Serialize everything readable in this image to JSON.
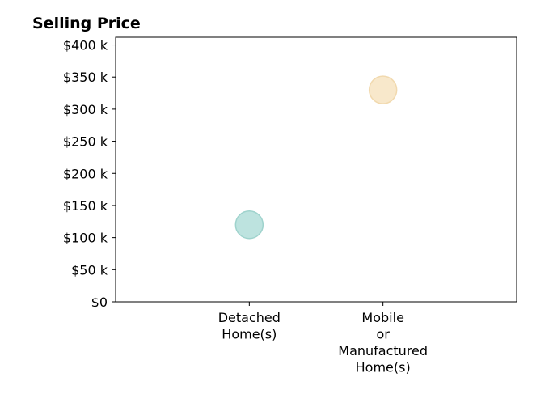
{
  "chart_data": {
    "type": "scatter",
    "title": "Selling Price",
    "xlabel": "",
    "ylabel": "",
    "categories": [
      [
        "Detached",
        "Home(s)"
      ],
      [
        "Mobile",
        "or",
        "Manufactured",
        "Home(s)"
      ]
    ],
    "x_range": [
      -1,
      2
    ],
    "ylim": [
      0,
      412000
    ],
    "y_ticks": [
      0,
      50000,
      100000,
      150000,
      200000,
      250000,
      300000,
      350000,
      400000
    ],
    "y_tick_labels": [
      "$0",
      "$50 k",
      "$100 k",
      "$150 k",
      "$200 k",
      "$250 k",
      "$300 k",
      "$350 k",
      "$400 k"
    ],
    "series": [
      {
        "points": [
          {
            "category_index": 0,
            "value": 120000,
            "color": "#bde3df",
            "edge": "#9fd3cd"
          },
          {
            "category_index": 1,
            "value": 330000,
            "color": "#f8e8cb",
            "edge": "#f1d9ae"
          }
        ]
      }
    ],
    "grid": false,
    "legend": "none"
  }
}
